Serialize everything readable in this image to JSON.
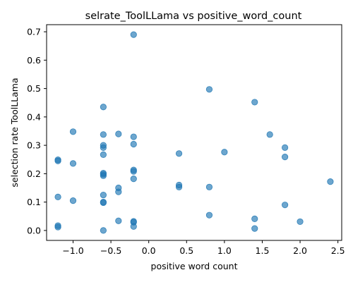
{
  "chart_data": {
    "type": "scatter",
    "title": "selrate_ToolLLama vs positive_word_count",
    "xlabel": "positive word count",
    "ylabel": "selection rate ToolLLama",
    "xlim": [
      -1.35,
      2.55
    ],
    "ylim": [
      -0.035,
      0.725
    ],
    "x_ticks": [
      -1.0,
      -0.5,
      0.0,
      0.5,
      1.0,
      1.5,
      2.0,
      2.5
    ],
    "x_tick_labels": [
      "−1.0",
      "−0.5",
      "0.0",
      "0.5",
      "1.0",
      "1.5",
      "2.0",
      "2.5"
    ],
    "y_ticks": [
      0.0,
      0.1,
      0.2,
      0.3,
      0.4,
      0.5,
      0.6,
      0.7
    ],
    "y_tick_labels": [
      "0.0",
      "0.1",
      "0.2",
      "0.3",
      "0.4",
      "0.5",
      "0.6",
      "0.7"
    ],
    "grid": false,
    "marker_color": "#1f77b4",
    "points": [
      [
        -0.2,
        0.69
      ],
      [
        0.8,
        0.497
      ],
      [
        1.4,
        0.452
      ],
      [
        -0.6,
        0.435
      ],
      [
        -1.0,
        0.348
      ],
      [
        -0.6,
        0.338
      ],
      [
        -0.4,
        0.34
      ],
      [
        1.6,
        0.338
      ],
      [
        -0.2,
        0.33
      ],
      [
        -0.6,
        0.3
      ],
      [
        -0.6,
        0.292
      ],
      [
        -0.2,
        0.304
      ],
      [
        1.8,
        0.292
      ],
      [
        0.4,
        0.271
      ],
      [
        1.0,
        0.276
      ],
      [
        -0.6,
        0.267
      ],
      [
        1.8,
        0.259
      ],
      [
        -1.2,
        0.249
      ],
      [
        -1.2,
        0.245
      ],
      [
        -1.0,
        0.236
      ],
      [
        -0.2,
        0.213
      ],
      [
        -0.2,
        0.208
      ],
      [
        -0.6,
        0.202
      ],
      [
        -0.6,
        0.198
      ],
      [
        -0.6,
        0.193
      ],
      [
        -0.2,
        0.182
      ],
      [
        2.4,
        0.172
      ],
      [
        0.4,
        0.16
      ],
      [
        0.4,
        0.153
      ],
      [
        0.8,
        0.153
      ],
      [
        -0.4,
        0.15
      ],
      [
        -0.4,
        0.136
      ],
      [
        -0.6,
        0.125
      ],
      [
        -1.2,
        0.118
      ],
      [
        -1.0,
        0.105
      ],
      [
        -0.6,
        0.1
      ],
      [
        -0.6,
        0.098
      ],
      [
        1.8,
        0.09
      ],
      [
        0.8,
        0.054
      ],
      [
        1.4,
        0.041
      ],
      [
        -0.4,
        0.034
      ],
      [
        -0.2,
        0.032
      ],
      [
        -0.2,
        0.029
      ],
      [
        2.0,
        0.031
      ],
      [
        -1.2,
        0.017
      ],
      [
        -1.2,
        0.012
      ],
      [
        -0.2,
        0.014
      ],
      [
        1.4,
        0.007
      ],
      [
        -0.6,
        0.0
      ]
    ]
  }
}
